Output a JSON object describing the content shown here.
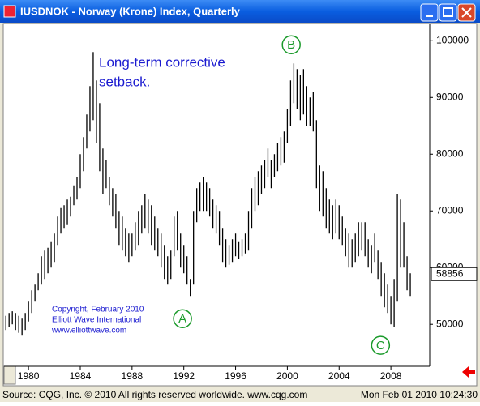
{
  "window": {
    "title": "IUSDNOK - Norway (Krone) Index, Quarterly"
  },
  "status_bar": {
    "source": "Source: CQG, Inc. © 2010 All rights reserved worldwide. www.cqg.com",
    "timestamp": "Mon Feb 01 2010 10:24:30"
  },
  "chart_data": {
    "type": "ohlc",
    "annotations": {
      "note": [
        "Long-term corrective",
        "setback."
      ],
      "copyright": [
        "Copyright, February 2010",
        "Elliott Wave International",
        "www.elliottwave.com"
      ]
    },
    "waves": [
      {
        "label": "A",
        "x": 1991.9,
        "y": 51000
      },
      {
        "label": "B",
        "x": 2000.3,
        "y": 99300
      },
      {
        "label": "C",
        "x": 2007.2,
        "y": 46300
      }
    ],
    "last_value": 58856,
    "color": "#000000",
    "xlim": [
      1978.3,
      2011
    ],
    "xticks": [
      1980,
      1984,
      1988,
      1992,
      1996,
      2000,
      2004,
      2008
    ],
    "ylim": [
      42600,
      102900
    ],
    "yticks": [
      50000,
      60000,
      70000,
      80000,
      90000,
      100000
    ],
    "x": [
      1978.25,
      1978.5,
      1978.75,
      1979,
      1979.25,
      1979.5,
      1979.75,
      1980,
      1980.25,
      1980.5,
      1980.75,
      1981,
      1981.25,
      1981.5,
      1981.75,
      1982,
      1982.25,
      1982.5,
      1982.75,
      1983,
      1983.25,
      1983.5,
      1983.75,
      1984,
      1984.25,
      1984.5,
      1984.75,
      1985,
      1985.25,
      1985.5,
      1985.75,
      1986,
      1986.25,
      1986.5,
      1986.75,
      1987,
      1987.25,
      1987.5,
      1987.75,
      1988,
      1988.25,
      1988.5,
      1988.75,
      1989,
      1989.25,
      1989.5,
      1989.75,
      1990,
      1990.25,
      1990.5,
      1990.75,
      1991,
      1991.25,
      1991.5,
      1991.75,
      1992,
      1992.25,
      1992.5,
      1992.75,
      1993,
      1993.25,
      1993.5,
      1993.75,
      1994,
      1994.25,
      1994.5,
      1994.75,
      1995,
      1995.25,
      1995.5,
      1995.75,
      1996,
      1996.25,
      1996.5,
      1996.75,
      1997,
      1997.25,
      1997.5,
      1997.75,
      1998,
      1998.25,
      1998.5,
      1998.75,
      1999,
      1999.25,
      1999.5,
      1999.75,
      2000,
      2000.25,
      2000.5,
      2000.75,
      2001,
      2001.25,
      2001.5,
      2001.75,
      2002,
      2002.25,
      2002.5,
      2002.75,
      2003,
      2003.25,
      2003.5,
      2003.75,
      2004,
      2004.25,
      2004.5,
      2004.75,
      2005,
      2005.25,
      2005.5,
      2005.75,
      2006,
      2006.25,
      2006.5,
      2006.75,
      2007,
      2007.25,
      2007.5,
      2007.75,
      2008,
      2008.25,
      2008.5,
      2008.75,
      2009,
      2009.25,
      2009.5
    ],
    "high": [
      51500,
      52000,
      52300,
      52000,
      51500,
      51000,
      52000,
      54000,
      56000,
      57000,
      59000,
      62000,
      63000,
      63500,
      64500,
      66000,
      69000,
      70500,
      71000,
      72000,
      72500,
      74500,
      76000,
      80000,
      83000,
      87000,
      92000,
      98000,
      93000,
      89000,
      81000,
      79000,
      76000,
      74000,
      73000,
      70000,
      69000,
      67000,
      66000,
      66000,
      68000,
      70000,
      71000,
      73000,
      72000,
      71000,
      69000,
      67000,
      66000,
      64000,
      62000,
      63000,
      69000,
      70000,
      66000,
      64000,
      62000,
      58000,
      70000,
      74000,
      75000,
      76000,
      75000,
      74000,
      72000,
      71000,
      70000,
      67000,
      65000,
      64000,
      65000,
      66000,
      64500,
      65000,
      66000,
      70000,
      74000,
      76000,
      77000,
      78000,
      79000,
      81000,
      79000,
      80000,
      82000,
      83000,
      84000,
      88000,
      93000,
      96000,
      95000,
      94000,
      95000,
      92000,
      90000,
      91000,
      86000,
      78000,
      77000,
      74000,
      72000,
      71000,
      72000,
      71000,
      69000,
      67000,
      66000,
      65000,
      66000,
      68000,
      68000,
      68000,
      65000,
      64000,
      66000,
      63000,
      61000,
      59000,
      57000,
      55000,
      58000,
      73000,
      72000,
      68000,
      62000,
      59000
    ],
    "low": [
      49000,
      49500,
      50000,
      49000,
      48500,
      48000,
      49000,
      50500,
      52000,
      54000,
      56000,
      57000,
      58000,
      59000,
      60000,
      61000,
      64000,
      66000,
      67000,
      67500,
      69000,
      71000,
      72000,
      74000,
      77000,
      81000,
      84000,
      86000,
      82000,
      77000,
      73000,
      74000,
      71000,
      69000,
      67000,
      64000,
      63000,
      62000,
      61000,
      62000,
      63000,
      64000,
      66000,
      67000,
      66000,
      64000,
      63000,
      62000,
      60000,
      58000,
      57000,
      58000,
      62000,
      63000,
      60000,
      59000,
      57000,
      55000,
      57000,
      68000,
      70000,
      70000,
      70000,
      69000,
      67000,
      66000,
      64000,
      61000,
      60000,
      60500,
      61000,
      62000,
      61500,
      62000,
      62500,
      63000,
      67000,
      70000,
      71000,
      73000,
      74000,
      76000,
      74000,
      76000,
      77000,
      78000,
      78500,
      82000,
      85000,
      89000,
      88000,
      86000,
      87000,
      85000,
      85000,
      84000,
      74000,
      70000,
      69000,
      67000,
      66000,
      65000,
      66000,
      65000,
      64000,
      62000,
      60000,
      60000,
      61000,
      62000,
      63000,
      62000,
      60000,
      59000,
      61000,
      58000,
      55000,
      53000,
      52000,
      50000,
      49500,
      54000,
      60000,
      60000,
      56000,
      55000
    ]
  }
}
